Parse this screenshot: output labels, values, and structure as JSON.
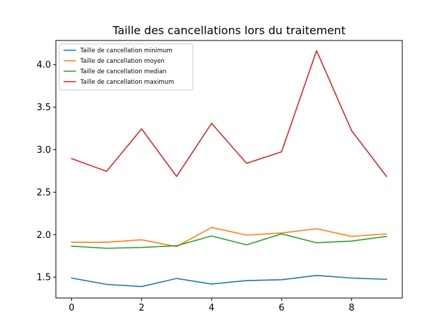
{
  "chart_data": {
    "type": "line",
    "title": "Taille des cancellations lors du traitement",
    "xlabel": "",
    "ylabel": "",
    "x": [
      0,
      1,
      2,
      3,
      4,
      5,
      6,
      7,
      8,
      9
    ],
    "xlim": [
      -0.45,
      9.45
    ],
    "ylim": [
      1.255,
      4.285
    ],
    "x_ticks": [
      0,
      2,
      4,
      6,
      8
    ],
    "x_tick_labels": [
      "0",
      "2",
      "4",
      "6",
      "8"
    ],
    "y_ticks": [
      1.5,
      2.0,
      2.5,
      3.0,
      3.5,
      4.0
    ],
    "y_tick_labels": [
      "1.5",
      "2.0",
      "2.5",
      "3.0",
      "3.5",
      "4.0"
    ],
    "grid": false,
    "legend_position": "top-left",
    "series": [
      {
        "name": "Taille de cancellation minimum",
        "color": "#1f77b4",
        "values": [
          1.49,
          1.415,
          1.39,
          1.485,
          1.42,
          1.46,
          1.47,
          1.52,
          1.49,
          1.475
        ]
      },
      {
        "name": "Taille de cancellation moyen",
        "color": "#ff7f0e",
        "values": [
          1.91,
          1.91,
          1.94,
          1.86,
          2.085,
          1.995,
          2.02,
          2.07,
          1.98,
          2.01
        ]
      },
      {
        "name": "Taille de cancellation median",
        "color": "#2ca02c",
        "values": [
          1.865,
          1.84,
          1.85,
          1.87,
          1.985,
          1.88,
          2.01,
          1.905,
          1.925,
          1.98
        ]
      },
      {
        "name": "Taille de cancellation maximum",
        "color": "#d62728",
        "values": [
          2.895,
          2.745,
          3.245,
          2.685,
          3.31,
          2.84,
          2.975,
          4.165,
          3.225,
          2.685
        ]
      }
    ]
  }
}
